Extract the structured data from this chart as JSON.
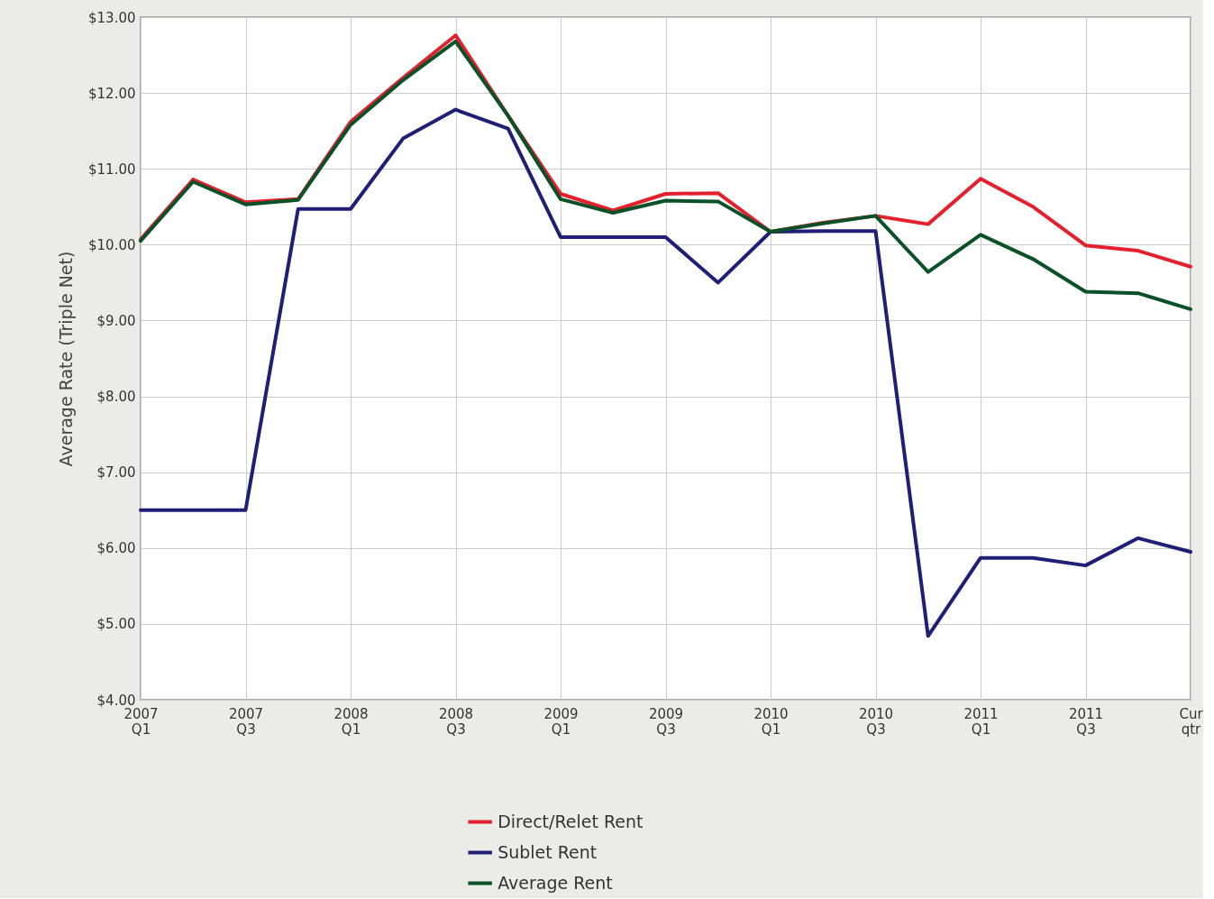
{
  "chart_data": {
    "type": "line",
    "ylabel": "Average Rate (Triple Net)",
    "categories": [
      "2007 Q1",
      null,
      "2007 Q3",
      null,
      "2008 Q1",
      null,
      "2008 Q3",
      null,
      "2009 Q1",
      null,
      "2009 Q3",
      null,
      "2010 Q1",
      null,
      "2010 Q3",
      null,
      "2011 Q1",
      null,
      "2011 Q3",
      null,
      "Cur qtr"
    ],
    "series": [
      {
        "name": "Direct/Relet Rent",
        "color": "#e3202c",
        "values": [
          10.07,
          10.86,
          10.56,
          10.6,
          11.62,
          12.2,
          12.76,
          11.7,
          10.67,
          10.45,
          10.67,
          10.68,
          10.17,
          10.29,
          10.38,
          10.27,
          10.87,
          10.5,
          9.99,
          9.92,
          9.71
        ]
      },
      {
        "name": "Sublet Rent",
        "color": "#1f1f78",
        "values": [
          6.5,
          6.5,
          6.5,
          10.47,
          10.47,
          11.4,
          11.78,
          11.53,
          10.1,
          10.1,
          10.1,
          9.5,
          10.17,
          10.18,
          10.18,
          4.84,
          5.87,
          5.87,
          5.77,
          6.13,
          5.95
        ]
      },
      {
        "name": "Average Rent",
        "color": "#0b5128",
        "values": [
          10.05,
          10.83,
          10.53,
          10.59,
          11.58,
          12.17,
          12.68,
          11.7,
          10.6,
          10.42,
          10.58,
          10.57,
          10.17,
          10.28,
          10.38,
          9.64,
          10.13,
          9.81,
          9.38,
          9.36,
          9.15
        ]
      }
    ],
    "ylim": [
      4,
      13
    ],
    "yticks": [
      {
        "value": 4,
        "label": "$4.00"
      },
      {
        "value": 5,
        "label": "$5.00"
      },
      {
        "value": 6,
        "label": "$6.00"
      },
      {
        "value": 7,
        "label": "$7.00"
      },
      {
        "value": 8,
        "label": "$8.00"
      },
      {
        "value": 9,
        "label": "$9.00"
      },
      {
        "value": 10,
        "label": "$10.00"
      },
      {
        "value": 11,
        "label": "$11.00"
      },
      {
        "value": 12,
        "label": "$12.00"
      },
      {
        "value": 13,
        "label": "$13.00"
      }
    ],
    "grid": true,
    "legend": "bottom",
    "line_style": "solid"
  }
}
